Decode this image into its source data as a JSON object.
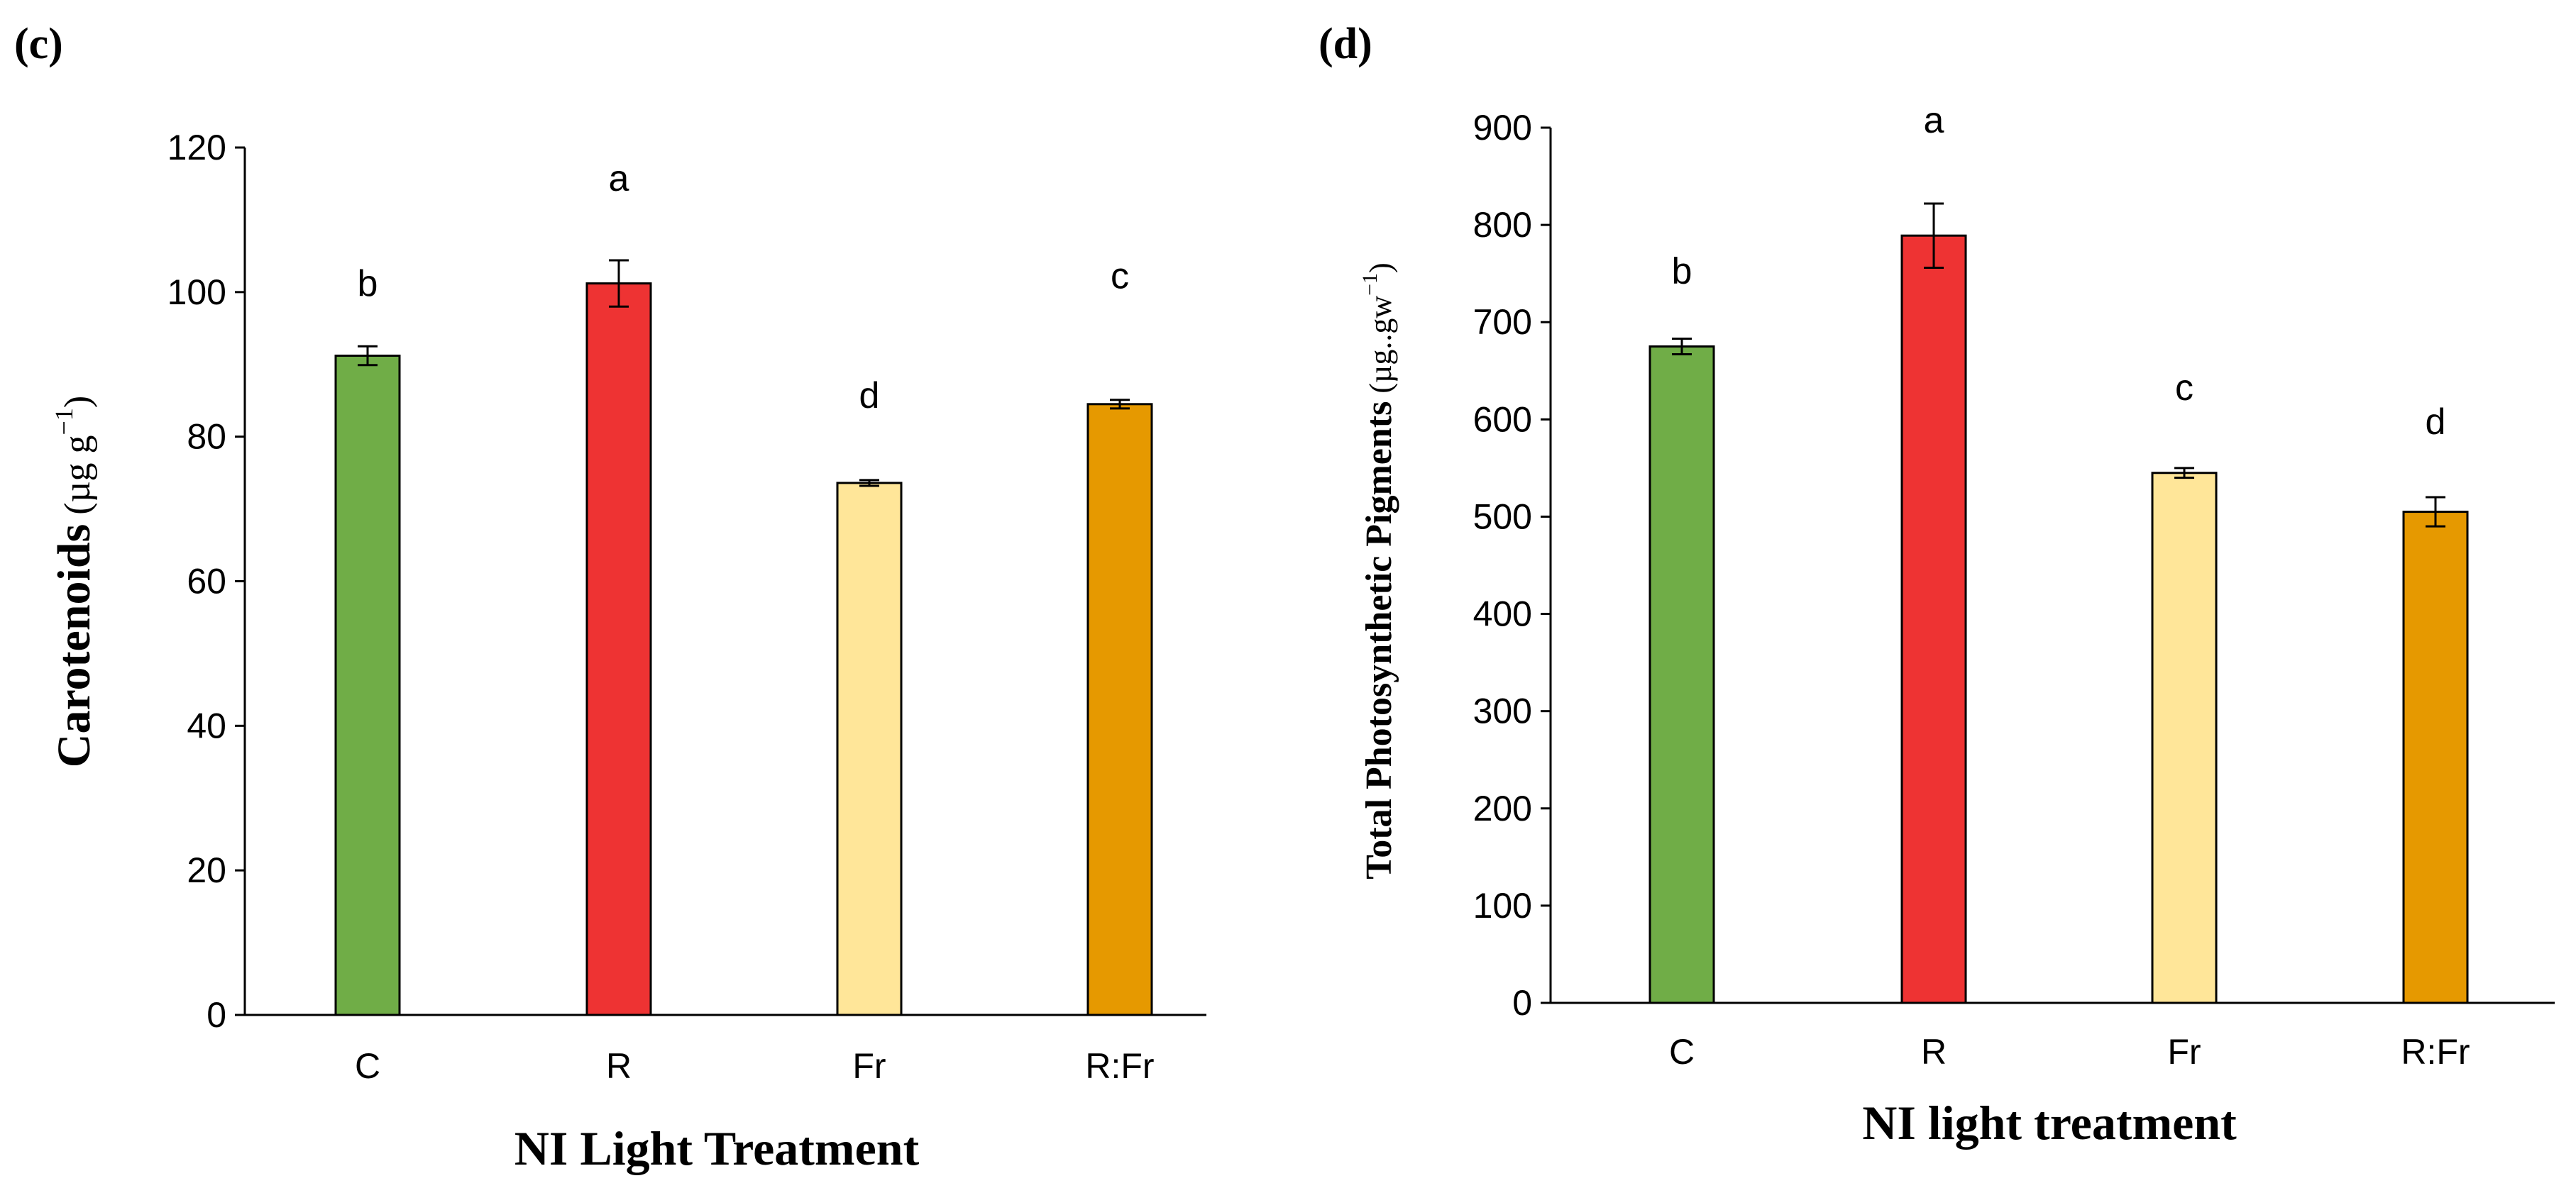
{
  "chart_data": [
    {
      "panel_label": "(c)",
      "type": "bar",
      "title": "",
      "xlabel": "NI Light Treatment",
      "ylabel": {
        "main": "Carotenoids",
        "unit_open": " (µg g",
        "unit_sup": "−1",
        "unit_close": ")"
      },
      "ylim": [
        0,
        120
      ],
      "yticks": [
        "0",
        "20",
        "40",
        "60",
        "80",
        "100",
        "120"
      ],
      "categories": [
        "C",
        "R",
        "Fr",
        "R:Fr"
      ],
      "values": [
        91.2,
        101.2,
        73.6,
        84.5
      ],
      "errors": [
        1.3,
        3.2,
        0.4,
        0.6
      ],
      "significance_letters": [
        "b",
        "a",
        "d",
        "c"
      ],
      "letter_values": [
        99.5,
        114,
        84,
        100.5
      ],
      "colors": [
        "#70AD47",
        "#EE3333",
        "#FFE699",
        "#E69900"
      ],
      "grid": false
    },
    {
      "panel_label": "(d)",
      "type": "bar",
      "title": "",
      "xlabel": "NI light treatment",
      "ylabel": {
        "main": "Total Photosynthetic Pigments",
        "unit_open": " (µg..gw",
        "unit_sup": "−1",
        "unit_close": ")"
      },
      "ylim": [
        0,
        900
      ],
      "yticks": [
        "0",
        "100",
        "200",
        "300",
        "400",
        "500",
        "600",
        "700",
        "800",
        "900"
      ],
      "categories": [
        "C",
        "R",
        "Fr",
        "R:Fr"
      ],
      "values": [
        675,
        789,
        545,
        505
      ],
      "errors": [
        8,
        33,
        5,
        15
      ],
      "significance_letters": [
        "b",
        "a",
        "c",
        "d"
      ],
      "letter_values": [
        740,
        895,
        620,
        585
      ],
      "colors": [
        "#70AD47",
        "#EE3333",
        "#FFE699",
        "#E69900"
      ],
      "grid": false
    }
  ]
}
